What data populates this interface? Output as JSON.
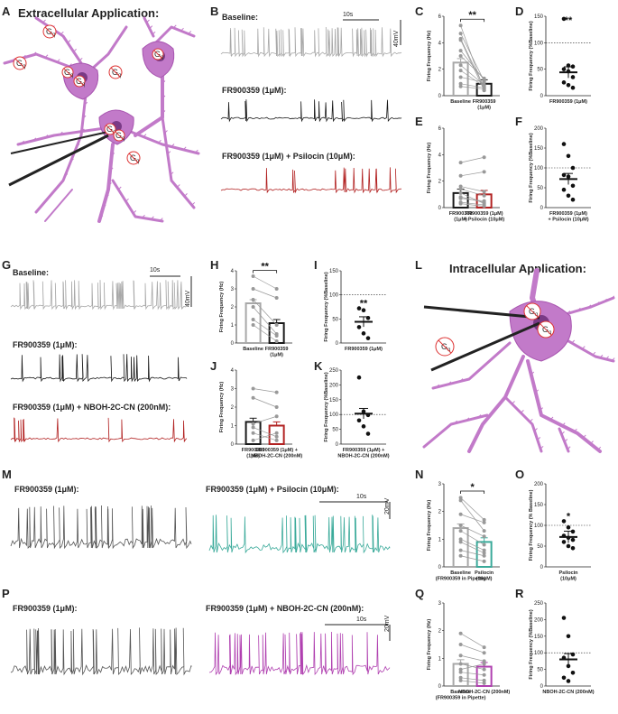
{
  "figure": {
    "panel_letters": [
      "A",
      "B",
      "C",
      "D",
      "E",
      "F",
      "G",
      "H",
      "I",
      "J",
      "K",
      "L",
      "M",
      "N",
      "O",
      "P",
      "Q",
      "R"
    ],
    "extracellular_title": "Extracellular Application:",
    "intracellular_title": "Intracellular Application:",
    "gq_label": "G",
    "gq_sub": "q",
    "scale_10s": "10s",
    "scale_40mv": "40mV",
    "scale_20mv": "20mV",
    "colors": {
      "baseline": "#a8a8a8",
      "fr": "#1a1a1a",
      "psilocin_red": "#b22222",
      "psilocin_teal": "#3aaa9a",
      "nboh_purple": "#b040b0",
      "grey_dark": "#555555",
      "neuron": "#c27ac9"
    },
    "icons": [
      "neuron-illustration",
      "gq-receptor-icon",
      "recording-pipette-icon"
    ]
  },
  "traces": {
    "B": [
      "Baseline:",
      "FR900359 (1μM):",
      "FR900359 (1μM) + Psilocin (10μM):"
    ],
    "G": [
      "Baseline:",
      "FR900359 (1μM):",
      "FR900359 (1μM) + NBOH-2C-CN (200nM):"
    ],
    "M": [
      "FR900359 (1μM):",
      "FR900359 (1μM) + Psilocin (10μM):"
    ],
    "P": [
      "FR900359 (1μM):",
      "FR900359 (1μM) + NBOH-2C-CN (200nM):"
    ]
  },
  "chart_data": [
    {
      "panel": "C",
      "type": "bar",
      "ylabel": "Firing Frequency (Hz)",
      "ylim": [
        0,
        6
      ],
      "yticks": [
        0,
        2,
        4,
        6
      ],
      "categories": [
        "Baseline",
        "FR900359\n(1μM)"
      ],
      "bar_colors": [
        "#a8a8a8",
        "#1a1a1a"
      ],
      "means": [
        2.5,
        0.9
      ],
      "paired": [
        [
          5.3,
          0.4
        ],
        [
          4.7,
          1.1
        ],
        [
          4.3,
          0.6
        ],
        [
          4.2,
          0.4
        ],
        [
          3.4,
          1.2
        ],
        [
          3.0,
          1.3
        ],
        [
          2.3,
          0.8
        ],
        [
          1.9,
          0.7
        ],
        [
          1.4,
          1.0
        ],
        [
          0.9,
          0.6
        ],
        [
          0.7,
          0.5
        ]
      ],
      "significance": "**"
    },
    {
      "panel": "D",
      "type": "scatter",
      "ylabel": "Firing Frequency (%Baseline)",
      "ylim": [
        0,
        150
      ],
      "yticks": [
        0,
        50,
        100,
        150
      ],
      "categories": [
        "FR900359 (1μM)"
      ],
      "means": [
        44
      ],
      "points": [
        [
          145
        ],
        [
          57
        ],
        [
          55
        ],
        [
          50
        ],
        [
          46
        ],
        [
          35
        ],
        [
          25
        ],
        [
          20
        ],
        [
          15
        ]
      ],
      "reference_line": 100,
      "significance": "**"
    },
    {
      "panel": "E",
      "type": "bar",
      "ylabel": "Firing Frequency (Hz)",
      "ylim": [
        0,
        6
      ],
      "yticks": [
        0,
        2,
        4,
        6
      ],
      "categories": [
        "FR900359\n(1μM)",
        "FR900359 (1μM)\n+ Psilocin (10μM)"
      ],
      "bar_colors": [
        "#1a1a1a",
        "#b22222"
      ],
      "means": [
        1.1,
        1.0
      ],
      "paired": [
        [
          3.4,
          3.8
        ],
        [
          2.4,
          2.7
        ],
        [
          1.6,
          1.2
        ],
        [
          1.4,
          0.9
        ],
        [
          1.1,
          0.3
        ],
        [
          0.8,
          0.4
        ],
        [
          0.7,
          0.5
        ],
        [
          0.4,
          0.2
        ],
        [
          0.3,
          0.1
        ]
      ]
    },
    {
      "panel": "F",
      "type": "scatter",
      "ylabel": "Firing Frequency (%Baseline)",
      "ylim": [
        0,
        200
      ],
      "yticks": [
        0,
        50,
        100,
        150,
        200
      ],
      "categories": [
        "FR900359 (1μM)\n+ Psilocin (10μM)"
      ],
      "means": [
        72
      ],
      "points": [
        [
          160
        ],
        [
          130
        ],
        [
          100
        ],
        [
          82
        ],
        [
          78
        ],
        [
          55
        ],
        [
          45
        ],
        [
          30
        ],
        [
          20
        ]
      ],
      "reference_line": 100
    },
    {
      "panel": "H",
      "type": "bar",
      "ylabel": "Firing Frequency (Hz)",
      "ylim": [
        0,
        4
      ],
      "yticks": [
        0,
        1,
        2,
        3,
        4
      ],
      "categories": [
        "Baseline",
        "FR900359\n(1μM)"
      ],
      "bar_colors": [
        "#a8a8a8",
        "#1a1a1a"
      ],
      "means": [
        2.2,
        1.1
      ],
      "paired": [
        [
          3.7,
          3.0
        ],
        [
          3.0,
          2.5
        ],
        [
          2.4,
          1.0
        ],
        [
          2.0,
          0.5
        ],
        [
          1.3,
          0.4
        ],
        [
          1.0,
          0.1
        ]
      ],
      "significance": "**"
    },
    {
      "panel": "I",
      "type": "scatter",
      "ylabel": "Firing Frequency (%Baseline)",
      "ylim": [
        0,
        150
      ],
      "yticks": [
        0,
        50,
        100,
        150
      ],
      "categories": [
        "FR900359 (1μM)"
      ],
      "means": [
        44
      ],
      "points": [
        [
          72
        ],
        [
          68
        ],
        [
          52
        ],
        [
          33
        ],
        [
          20
        ],
        [
          10
        ]
      ],
      "reference_line": 100,
      "significance": "**"
    },
    {
      "panel": "J",
      "type": "bar",
      "ylabel": "Firing Frequency (Hz)",
      "ylim": [
        0,
        4
      ],
      "yticks": [
        0,
        1,
        2,
        3,
        4
      ],
      "categories": [
        "FR900359\n(1μM)",
        "FR900359 (1μM) +\nNBOH-2C-CN (200nM)"
      ],
      "bar_colors": [
        "#1a1a1a",
        "#b22222"
      ],
      "means": [
        1.2,
        1.0
      ],
      "paired": [
        [
          3.0,
          2.8
        ],
        [
          2.5,
          2.0
        ],
        [
          1.1,
          1.5
        ],
        [
          0.9,
          0.4
        ],
        [
          0.6,
          0.2
        ],
        [
          0.2,
          0.6
        ]
      ]
    },
    {
      "panel": "K",
      "type": "scatter",
      "ylabel": "Firing Frequency (%Baseline)",
      "ylim": [
        0,
        250
      ],
      "yticks": [
        0,
        50,
        100,
        150,
        200,
        250
      ],
      "categories": [
        "FR900359 (1μM) +\nNBOH-2C-CN (200nM)"
      ],
      "means": [
        103
      ],
      "points": [
        [
          225
        ],
        [
          110
        ],
        [
          98
        ],
        [
          80
        ],
        [
          60
        ],
        [
          35
        ]
      ],
      "reference_line": 100
    },
    {
      "panel": "N",
      "type": "bar",
      "ylabel": "Firing Frequency (Hz)",
      "ylim": [
        0,
        3
      ],
      "yticks": [
        0,
        1,
        2,
        3
      ],
      "categories": [
        "Baseline\n(FR900359 in Pipette)",
        "Psilocin\n(10μM)"
      ],
      "bar_colors": [
        "#a8a8a8",
        "#3aaa9a"
      ],
      "means": [
        1.4,
        0.9
      ],
      "paired": [
        [
          2.5,
          1.7
        ],
        [
          2.4,
          1.3
        ],
        [
          1.9,
          1.6
        ],
        [
          1.5,
          1.1
        ],
        [
          1.3,
          0.8
        ],
        [
          1.0,
          0.6
        ],
        [
          0.9,
          0.5
        ],
        [
          0.6,
          0.4
        ],
        [
          0.4,
          0.2
        ]
      ],
      "significance": "*"
    },
    {
      "panel": "O",
      "type": "scatter",
      "ylabel": "Firing Frequency (% Baseline)",
      "ylim": [
        0,
        200
      ],
      "yticks": [
        0,
        50,
        100,
        150,
        200
      ],
      "categories": [
        "Psilocin\n(10μM)"
      ],
      "means": [
        72
      ],
      "points": [
        [
          110
        ],
        [
          95
        ],
        [
          85
        ],
        [
          75
        ],
        [
          70
        ],
        [
          65
        ],
        [
          60
        ],
        [
          50
        ],
        [
          45
        ]
      ],
      "reference_line": 100,
      "significance": "*"
    },
    {
      "panel": "Q",
      "type": "bar",
      "ylabel": "Firing Frequency (Hz)",
      "ylim": [
        0,
        3
      ],
      "yticks": [
        0,
        1,
        2,
        3
      ],
      "categories": [
        "Baseline\n(FR900359 in Pipette)",
        "NBOH-2C-CN (200nM)"
      ],
      "bar_colors": [
        "#a8a8a8",
        "#b040b0"
      ],
      "means": [
        0.8,
        0.7
      ],
      "paired": [
        [
          1.9,
          1.4
        ],
        [
          1.5,
          1.2
        ],
        [
          1.1,
          0.9
        ],
        [
          0.8,
          0.6
        ],
        [
          0.6,
          0.8
        ],
        [
          0.5,
          0.4
        ],
        [
          0.3,
          0.2
        ],
        [
          0.2,
          0.1
        ]
      ]
    },
    {
      "panel": "R",
      "type": "scatter",
      "ylabel": "Firing Frequency (%Baseline)",
      "ylim": [
        0,
        250
      ],
      "yticks": [
        0,
        50,
        100,
        150,
        200,
        250
      ],
      "categories": [
        "NBOH-2C-CN (200nM)"
      ],
      "means": [
        80
      ],
      "points": [
        [
          205
        ],
        [
          150
        ],
        [
          95
        ],
        [
          85
        ],
        [
          60
        ],
        [
          40
        ],
        [
          25
        ],
        [
          15
        ]
      ],
      "reference_line": 100
    }
  ]
}
